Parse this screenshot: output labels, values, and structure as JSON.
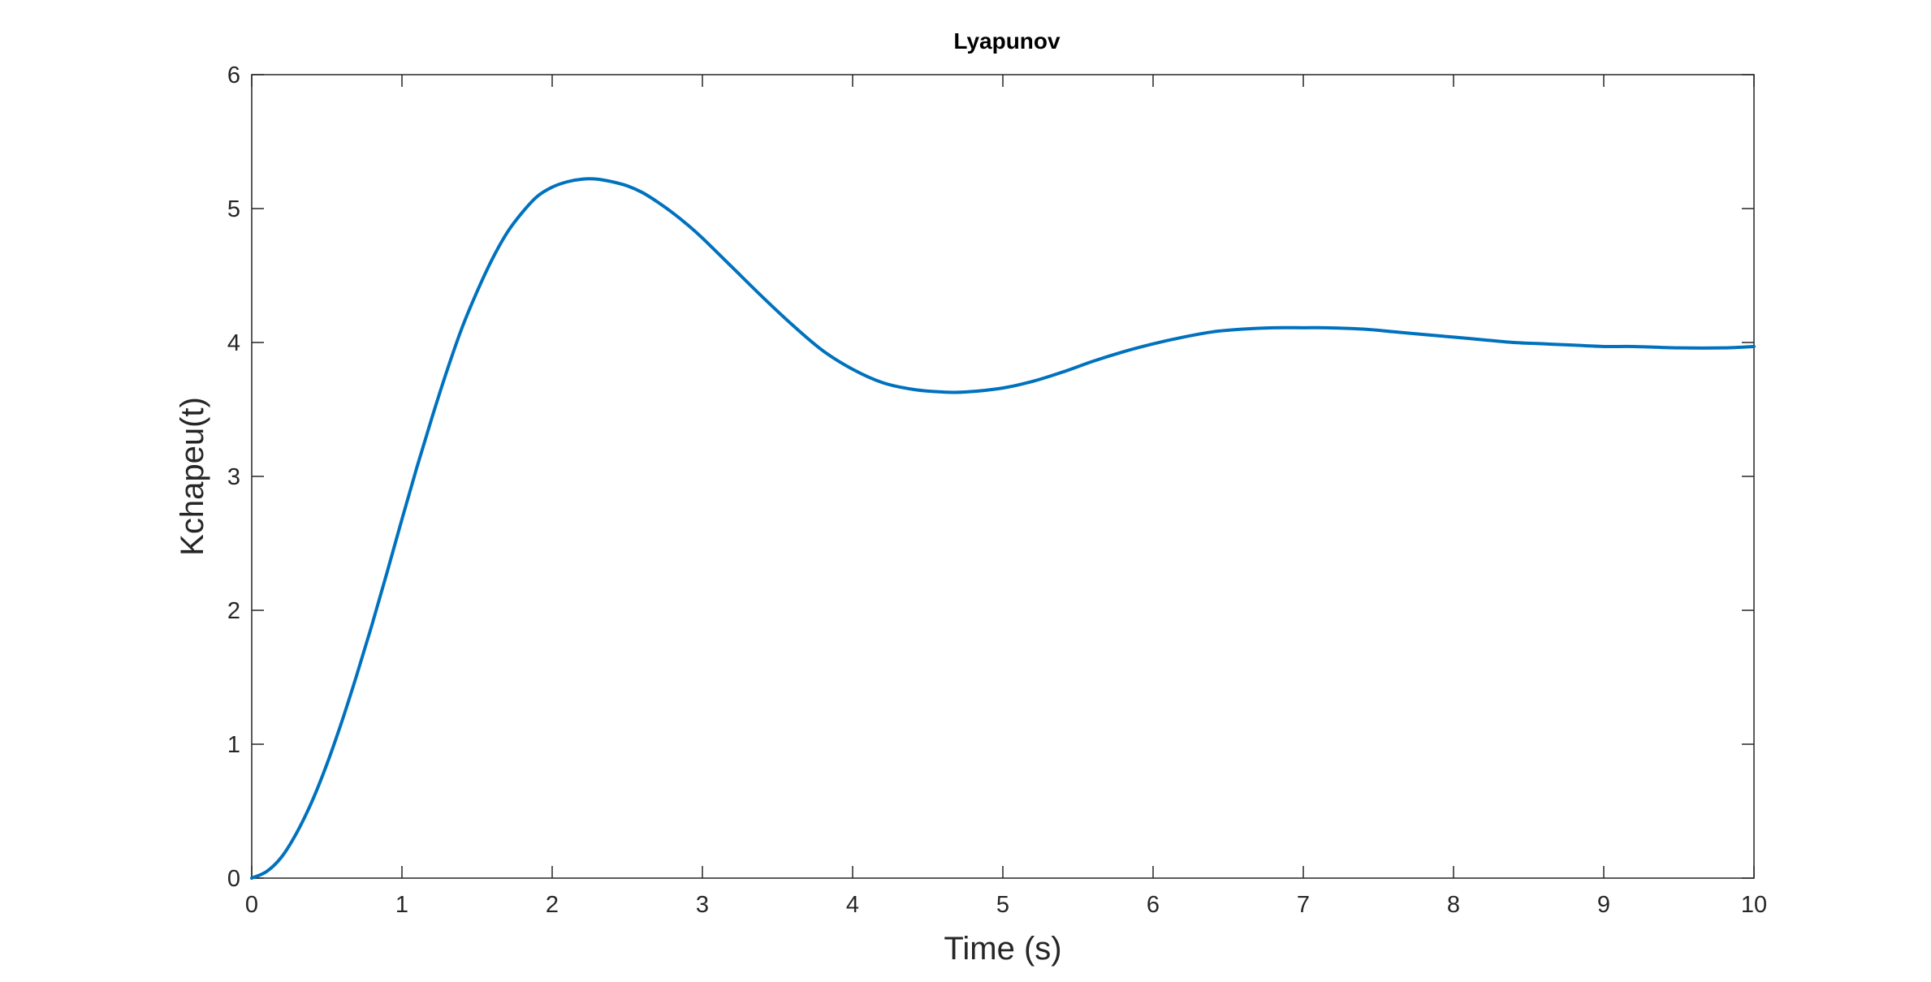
{
  "chart_data": {
    "type": "line",
    "title": "Lyapunov",
    "xlabel": "Time (s)",
    "ylabel": "Kchapeu(t)",
    "xlim": [
      0,
      10
    ],
    "ylim": [
      0,
      6
    ],
    "xticks": [
      "0",
      "1",
      "2",
      "3",
      "4",
      "5",
      "6",
      "7",
      "8",
      "9",
      "10"
    ],
    "yticks": [
      "0",
      "1",
      "2",
      "3",
      "4",
      "5",
      "6"
    ],
    "grid": false,
    "box": true,
    "colors": {
      "line": "#0072BD",
      "axes": "#262626"
    },
    "series": [
      {
        "x": [
          0,
          0.1,
          0.2,
          0.3,
          0.4,
          0.5,
          0.6,
          0.7,
          0.8,
          0.9,
          1.0,
          1.1,
          1.2,
          1.3,
          1.4,
          1.5,
          1.6,
          1.7,
          1.8,
          1.9,
          2.0,
          2.1,
          2.2,
          2.3,
          2.4,
          2.5,
          2.6,
          2.7,
          2.8,
          2.9,
          3.0,
          3.2,
          3.4,
          3.6,
          3.8,
          4.0,
          4.2,
          4.4,
          4.6,
          4.75,
          5.0,
          5.2,
          5.4,
          5.6,
          5.8,
          6.0,
          6.2,
          6.4,
          6.6,
          6.8,
          7.0,
          7.15,
          7.4,
          7.6,
          7.8,
          8.0,
          8.2,
          8.4,
          8.6,
          8.8,
          9.0,
          9.2,
          9.5,
          9.8,
          10.0
        ],
        "y": [
          0,
          0.05,
          0.16,
          0.34,
          0.57,
          0.85,
          1.17,
          1.52,
          1.89,
          2.28,
          2.68,
          3.07,
          3.44,
          3.79,
          4.11,
          4.38,
          4.62,
          4.82,
          4.97,
          5.09,
          5.16,
          5.2,
          5.22,
          5.22,
          5.2,
          5.17,
          5.12,
          5.05,
          4.97,
          4.88,
          4.78,
          4.56,
          4.34,
          4.13,
          3.94,
          3.8,
          3.7,
          3.65,
          3.63,
          3.63,
          3.66,
          3.71,
          3.78,
          3.86,
          3.93,
          3.99,
          4.04,
          4.08,
          4.1,
          4.11,
          4.11,
          4.11,
          4.1,
          4.08,
          4.06,
          4.04,
          4.02,
          4.0,
          3.99,
          3.98,
          3.97,
          3.97,
          3.96,
          3.96,
          3.97
        ]
      }
    ]
  }
}
